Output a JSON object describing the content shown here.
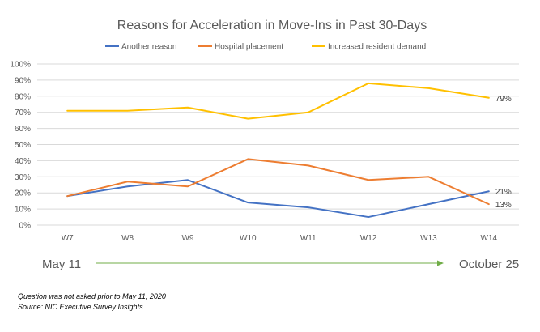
{
  "chart_data": {
    "type": "line",
    "title": "Reasons for Acceleration in Move-Ins in Past 30-Days",
    "categories": [
      "W7",
      "W8",
      "W9",
      "W10",
      "W11",
      "W12",
      "W13",
      "W14"
    ],
    "y_ticks": [
      "0%",
      "10%",
      "20%",
      "30%",
      "40%",
      "50%",
      "60%",
      "70%",
      "80%",
      "90%",
      "100%"
    ],
    "ylim": [
      0,
      100
    ],
    "grid": true,
    "legend_position": "top",
    "series": [
      {
        "name": "Another reason",
        "color": "#4472c4",
        "values": [
          18,
          24,
          28,
          14,
          11,
          5,
          13,
          21
        ],
        "end_label": "21%"
      },
      {
        "name": "Hospital placement",
        "color": "#ed7d31",
        "values": [
          18,
          27,
          24,
          41,
          37,
          28,
          30,
          13
        ],
        "end_label": "13%"
      },
      {
        "name": "Increased resident demand",
        "color": "#ffc000",
        "values": [
          71,
          71,
          73,
          66,
          70,
          88,
          85,
          79
        ],
        "end_label": "79%"
      }
    ],
    "date_range": {
      "start": "May 11",
      "end": "October 25",
      "arrow_color": "#70ad47"
    }
  },
  "notes": [
    "Question was not asked prior to May 11, 2020",
    "Source: NIC Executive Survey Insights"
  ]
}
